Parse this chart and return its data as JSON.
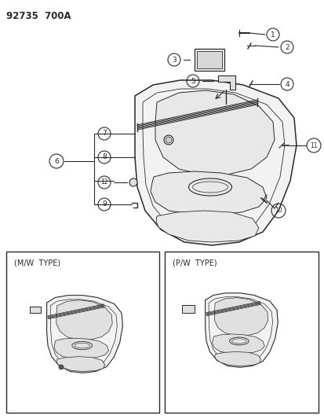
{
  "title": "92735  700A",
  "bg": "#ffffff",
  "lc": "#2a2a2a",
  "fig_w": 4.14,
  "fig_h": 5.33,
  "dpi": 100,
  "mw_label": "(M/W  TYPE)",
  "pw_label": "(P/W  TYPE)"
}
